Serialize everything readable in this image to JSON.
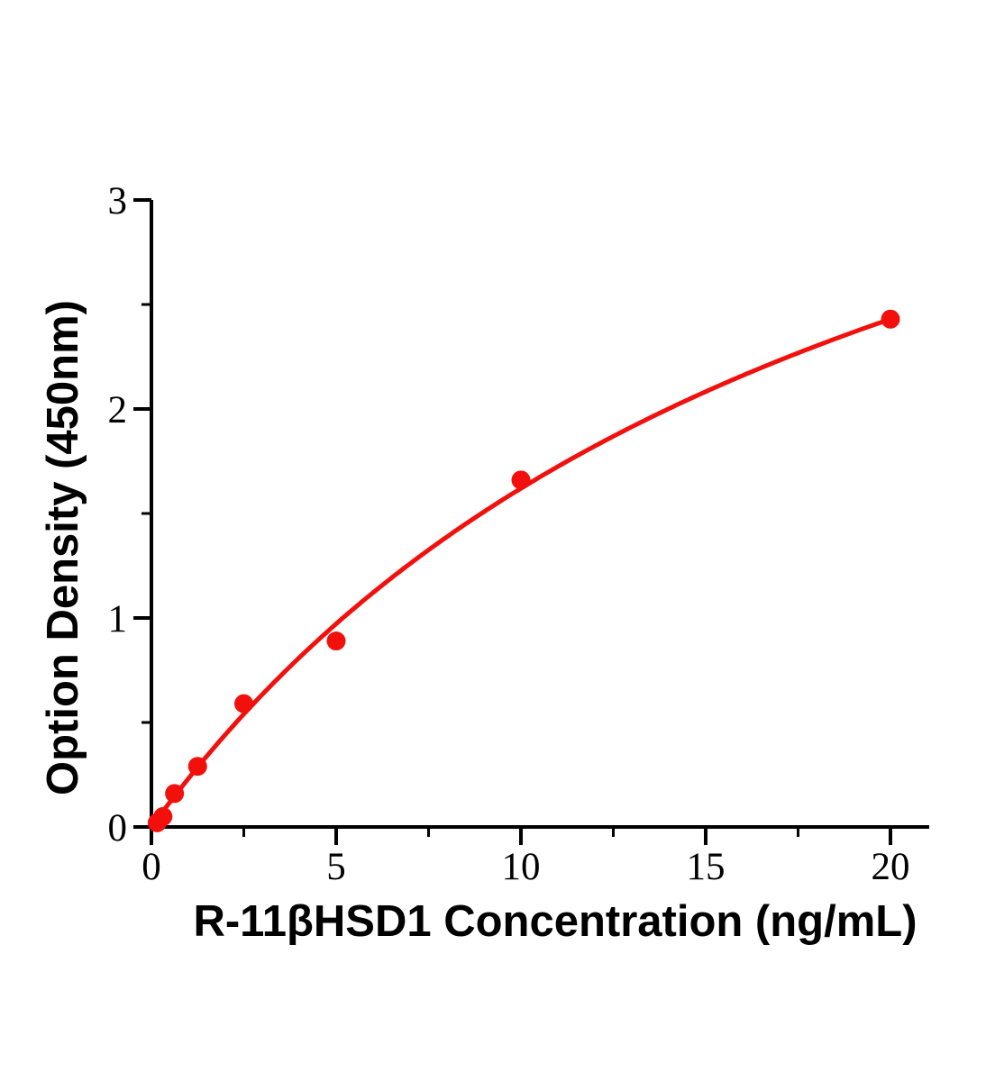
{
  "chart_data": {
    "type": "scatter",
    "title": "",
    "xlabel": "R-11βHSD1 Concentration (ng/mL)",
    "ylabel": "Option Density (450nm)",
    "x_axis": {
      "min": 0,
      "max": 21,
      "major_ticks": [
        0,
        5,
        10,
        15,
        20
      ],
      "major_tick_labels": [
        "0",
        "5",
        "10",
        "15",
        "20"
      ],
      "minor_ticks": [
        2.5,
        7.5,
        12.5,
        17.5
      ]
    },
    "y_axis": {
      "min": 0,
      "max": 3,
      "major_ticks": [
        0,
        1,
        2,
        3
      ],
      "major_tick_labels": [
        "0",
        "1",
        "2",
        "3"
      ],
      "minor_ticks": [
        0.5,
        1.5,
        2.5
      ]
    },
    "grid": false,
    "legend": false,
    "series": [
      {
        "name": "standard-curve",
        "marker": "circle",
        "color": "#f2100d",
        "points": [
          {
            "x": 0.156,
            "y": 0.02
          },
          {
            "x": 0.3125,
            "y": 0.05
          },
          {
            "x": 0.625,
            "y": 0.16
          },
          {
            "x": 1.25,
            "y": 0.29
          },
          {
            "x": 2.5,
            "y": 0.59
          },
          {
            "x": 5,
            "y": 0.89
          },
          {
            "x": 10,
            "y": 1.66
          },
          {
            "x": 20,
            "y": 2.43
          }
        ],
        "fit_curve": {
          "type": "saturation",
          "formula": "y = a*x/(b+x)",
          "a": 4.86,
          "b": 20,
          "x_start": 0,
          "x_end": 20
        }
      }
    ],
    "colors": {
      "axis": "#000000",
      "tick_label": "#000000",
      "curve": "#f2100d",
      "background": "#ffffff"
    }
  }
}
